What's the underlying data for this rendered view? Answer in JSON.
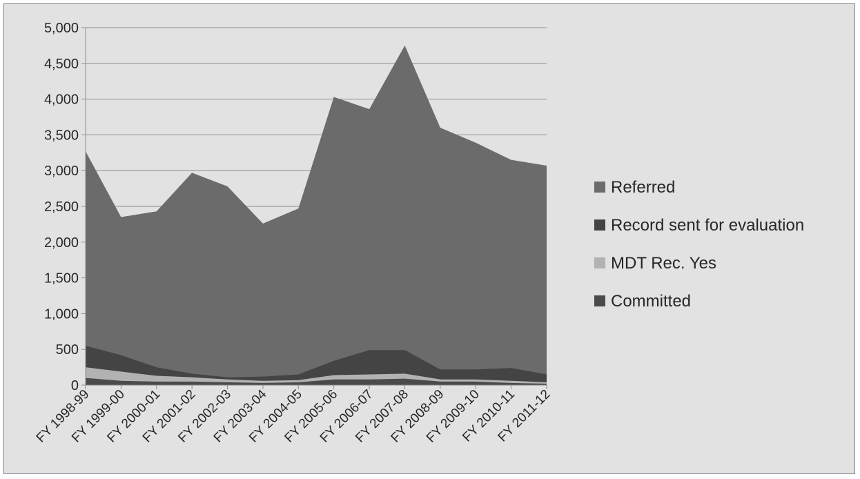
{
  "chart_data": {
    "type": "area",
    "categories": [
      "FY 1998-99",
      "FY 1999-00",
      "FY 2000-01",
      "FY 2001-02",
      "FY 2002-03",
      "FY 2003-04",
      "FY 2004-05",
      "FY 2005-06",
      "FY 2006-07",
      "FY 2007-08",
      "FY 2008-09",
      "FY 2009-10",
      "FY 2010-11",
      "FY 2011-12"
    ],
    "y_tick_labels": [
      "0",
      "500",
      "1,000",
      "1,500",
      "2,000",
      "2,500",
      "3,000",
      "3,500",
      "4,000",
      "4,500",
      "5,000"
    ],
    "ylim": [
      0,
      5000
    ],
    "grid": "horizontal",
    "legend_position": "right",
    "stacked": false,
    "series": [
      {
        "name": "Referred",
        "color": "#6b6b6b",
        "values": [
          3270,
          2350,
          2430,
          2970,
          2780,
          2260,
          2470,
          4030,
          3860,
          4750,
          3600,
          3390,
          3150,
          3070
        ]
      },
      {
        "name": "Record sent for evaluation",
        "color": "#444444",
        "values": [
          550,
          420,
          250,
          160,
          110,
          120,
          150,
          340,
          490,
          490,
          220,
          220,
          240,
          150
        ]
      },
      {
        "name": "MDT Rec. Yes",
        "color": "#b2b2b2",
        "values": [
          250,
          190,
          130,
          110,
          80,
          60,
          70,
          140,
          150,
          160,
          80,
          80,
          60,
          40
        ]
      },
      {
        "name": "Committed",
        "color": "#4a4a4a",
        "values": [
          100,
          60,
          50,
          50,
          40,
          30,
          40,
          80,
          80,
          90,
          50,
          50,
          30,
          20
        ]
      }
    ]
  }
}
